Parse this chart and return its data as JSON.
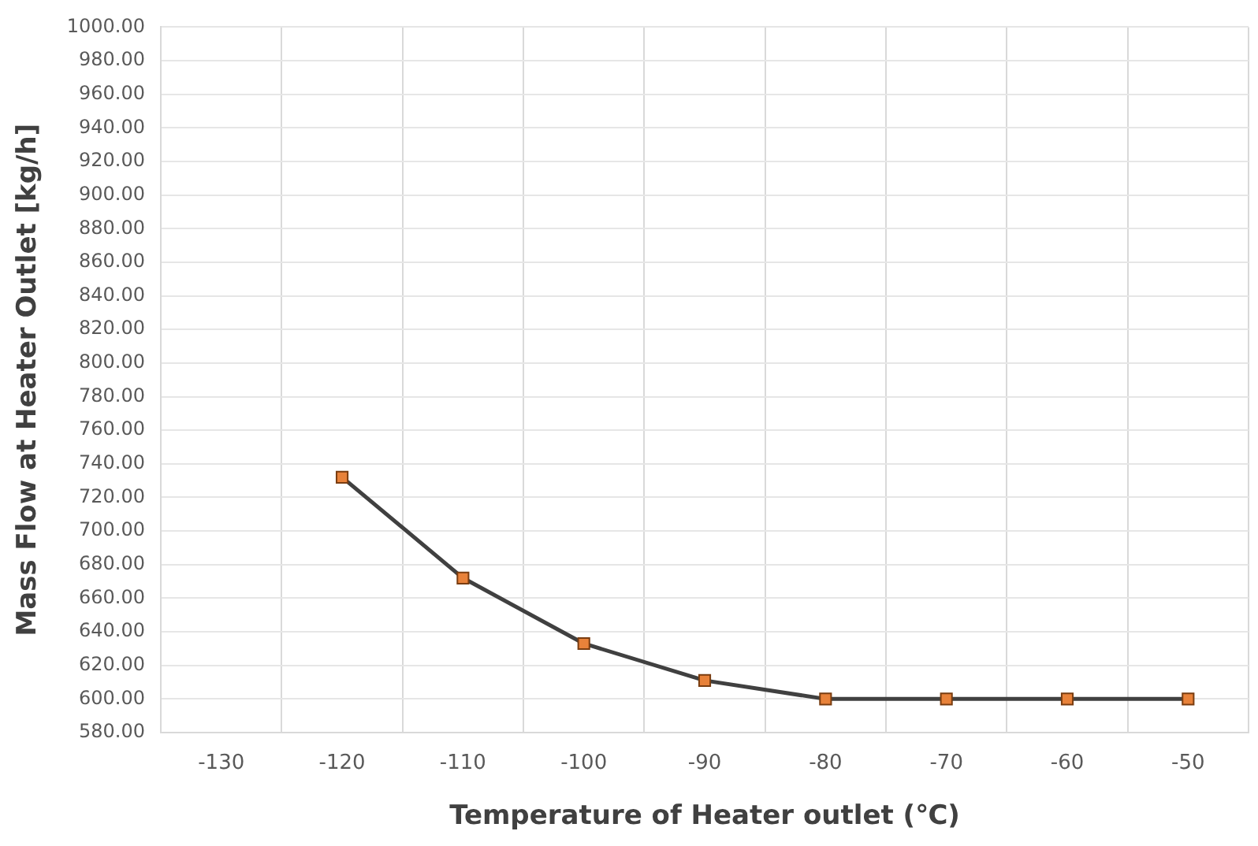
{
  "chart_data": {
    "type": "line",
    "xlabel": "Temperature of Heater outlet (℃)",
    "ylabel": "Mass Flow at Heater Outlet [kg/h]",
    "categories": [
      "-130",
      "-120",
      "-110",
      "-100",
      "-90",
      "-80",
      "-70",
      "-60",
      "-50"
    ],
    "series": [
      {
        "color": "#e8823a",
        "values": [
          null,
          732,
          672,
          633,
          611,
          600,
          600,
          600,
          600
        ]
      }
    ],
    "ylim": [
      580,
      1000
    ],
    "yticks": [
      {
        "value": 580,
        "label": "580.00"
      },
      {
        "value": 600,
        "label": "600.00"
      },
      {
        "value": 620,
        "label": "620.00"
      },
      {
        "value": 640,
        "label": "640.00"
      },
      {
        "value": 660,
        "label": "660.00"
      },
      {
        "value": 680,
        "label": "680.00"
      },
      {
        "value": 700,
        "label": "700.00"
      },
      {
        "value": 720,
        "label": "720.00"
      },
      {
        "value": 740,
        "label": "740.00"
      },
      {
        "value": 760,
        "label": "760.00"
      },
      {
        "value": 780,
        "label": "780.00"
      },
      {
        "value": 800,
        "label": "800.00"
      },
      {
        "value": 820,
        "label": "820.00"
      },
      {
        "value": 840,
        "label": "840.00"
      },
      {
        "value": 860,
        "label": "860.00"
      },
      {
        "value": 880,
        "label": "880.00"
      },
      {
        "value": 900,
        "label": "900.00"
      },
      {
        "value": 920,
        "label": "920.00"
      },
      {
        "value": 940,
        "label": "940.00"
      },
      {
        "value": 960,
        "label": "960.00"
      },
      {
        "value": 980,
        "label": "980.00"
      },
      {
        "value": 1000,
        "label": "1000.00"
      }
    ],
    "grid": true,
    "marker": "square",
    "line_style": "solid",
    "legend": false
  }
}
